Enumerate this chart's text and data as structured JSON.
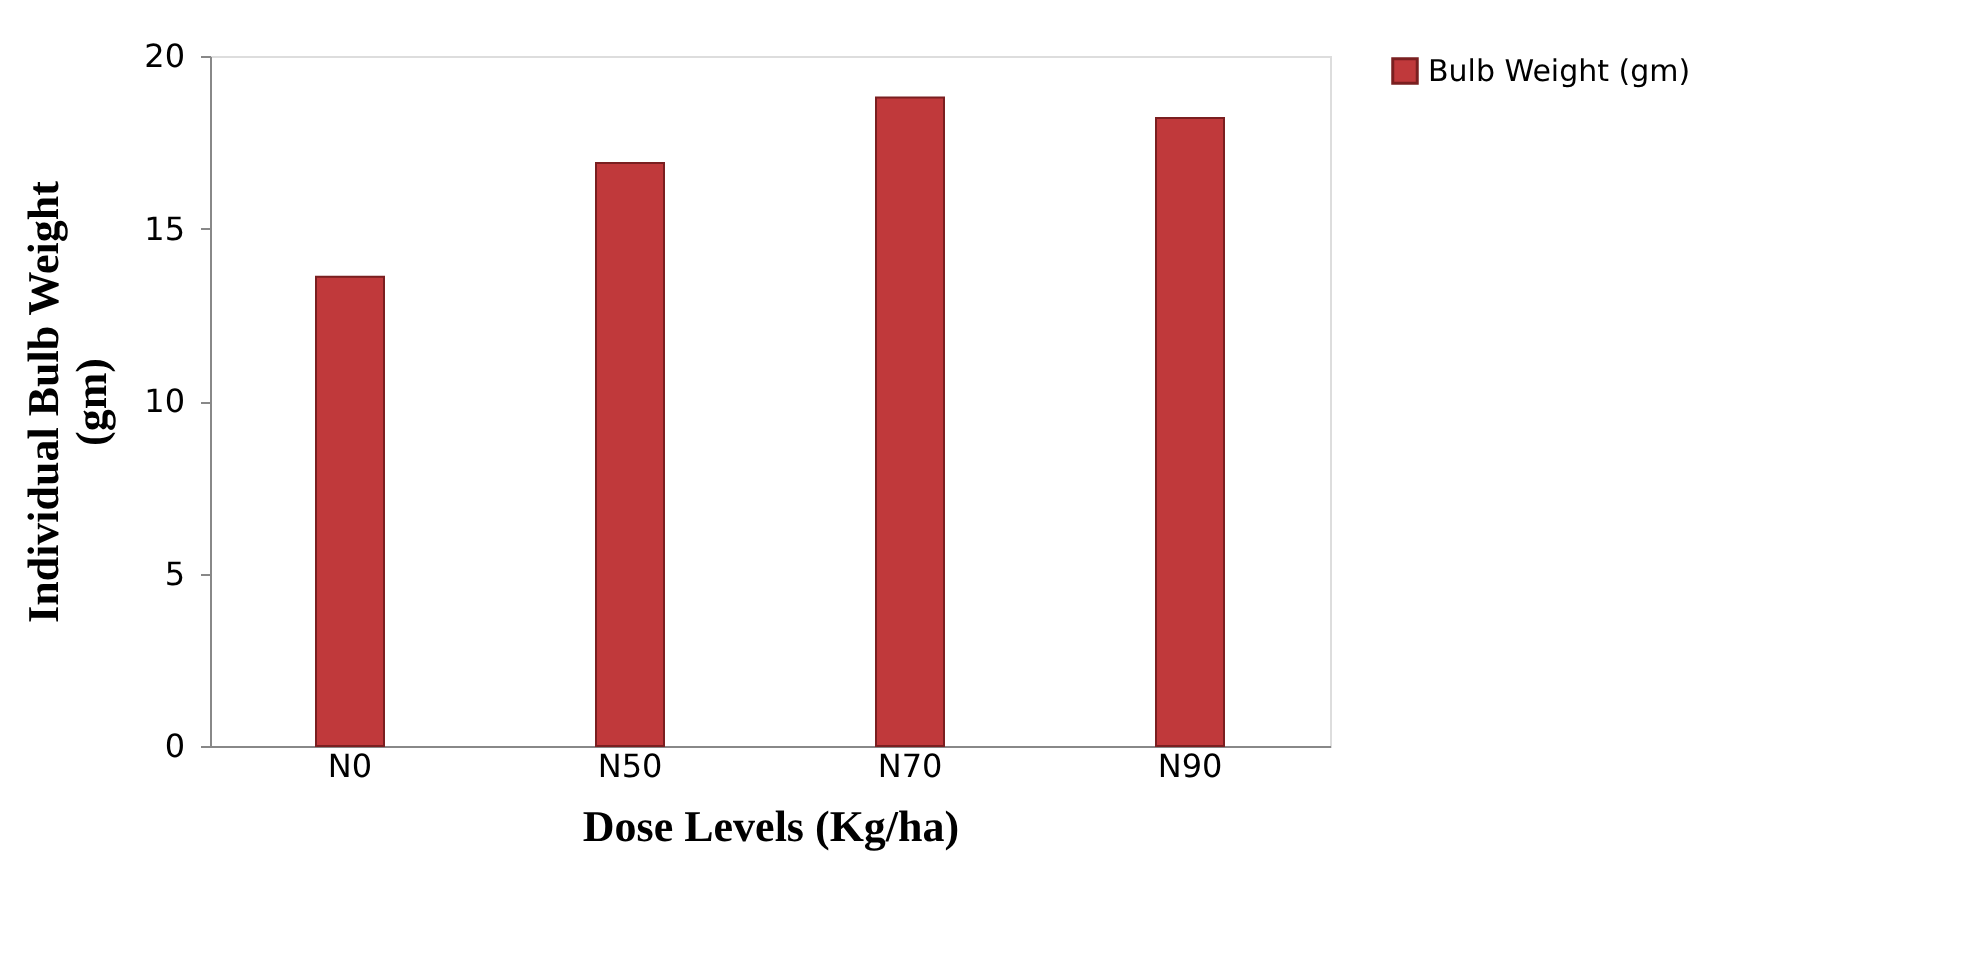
{
  "chart_data": {
    "type": "bar",
    "xlabel": "Dose Levels (Kg/ha)",
    "ylabel": "Individual Bulb Weight (gm)",
    "categories": [
      "N0",
      "N50",
      "N70",
      "N90"
    ],
    "series": [
      {
        "name": "Bulb Weight (gm)",
        "color": "#c0393b",
        "values": [
          13.6,
          16.9,
          18.8,
          18.2
        ]
      }
    ],
    "ylim": [
      0,
      20
    ],
    "yticks": [
      0,
      5,
      10,
      15,
      20
    ],
    "grid": false,
    "legend": "right"
  }
}
